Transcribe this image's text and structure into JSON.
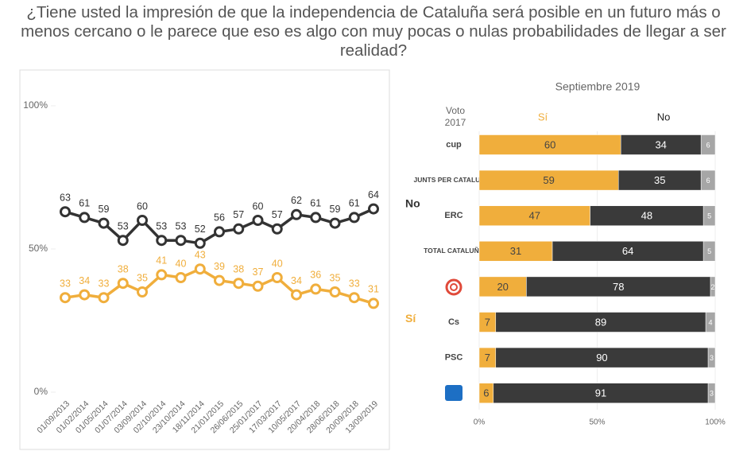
{
  "title": "¿Tiene usted la impresión de que la independencia de Cataluña será posible en un futuro más o menos cercano o le parece que eso es algo con muy pocas o nulas probabilidades de llegar a ser realidad?",
  "chart_data": [
    {
      "type": "line",
      "categories": [
        "01/09/2013",
        "01/02/2014",
        "01/05/2014",
        "01/07/2014",
        "03/09/2014",
        "02/10/2014",
        "23/10/2014",
        "18/11/2014",
        "21/01/2015",
        "26/06/2015",
        "25/01/2017",
        "17/03/2017",
        "10/05/2017",
        "20/04/2018",
        "28/06/2018",
        "20/09/2018",
        "13/09/2019"
      ],
      "series": [
        {
          "name": "No",
          "color": "#333333",
          "values": [
            63,
            61,
            59,
            53,
            60,
            53,
            53,
            52,
            56,
            57,
            60,
            57,
            62,
            61,
            59,
            61,
            64
          ]
        },
        {
          "name": "Sí",
          "color": "#f0ae3c",
          "values": [
            33,
            34,
            33,
            38,
            35,
            41,
            40,
            43,
            39,
            38,
            37,
            40,
            34,
            36,
            35,
            33,
            31
          ]
        }
      ],
      "ylim": [
        0,
        100
      ],
      "yticks": [
        {
          "value": 0,
          "label": "0%"
        },
        {
          "value": 50,
          "label": "50%"
        },
        {
          "value": 100,
          "label": "100%"
        }
      ]
    },
    {
      "type": "stacked-bar-horizontal",
      "title": "Septiembre 2019",
      "y_label": "Voto 2017",
      "categories": [
        "cup",
        "JUNTS PER CATALUNYA",
        "ERC",
        "TOTAL CATALUÑA",
        null,
        "Cs",
        "PSC",
        null
      ],
      "series": [
        {
          "name": "Sí",
          "color": "#f0ae3c",
          "values": [
            60,
            59,
            47,
            31,
            20,
            7,
            7,
            6
          ]
        },
        {
          "name": "No",
          "color": "#3a3a3a",
          "values": [
            34,
            35,
            48,
            64,
            78,
            89,
            90,
            91
          ]
        },
        {
          "color": "#a6a6a6",
          "values": [
            6,
            6,
            5,
            5,
            2,
            4,
            3,
            3
          ]
        }
      ],
      "xlim": [
        0,
        100
      ],
      "xticks": [
        {
          "value": 0,
          "label": "0%"
        },
        {
          "value": 50,
          "label": "50%"
        },
        {
          "value": 100,
          "label": "100%"
        }
      ]
    }
  ]
}
